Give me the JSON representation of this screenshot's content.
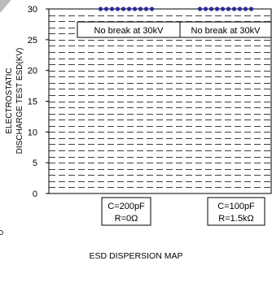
{
  "chart_data": {
    "type": "scatter",
    "title": "",
    "xlabel": "ESD DISPERSION MAP",
    "ylabel_lines": [
      "ELECTROSTATIC",
      "DISCHARGE TEST ESD(KV)"
    ],
    "ylim": [
      0,
      30
    ],
    "yticks": [
      "0",
      "5",
      "10",
      "15",
      "20",
      "25",
      "30"
    ],
    "grid": true,
    "categories": [
      {
        "line1": "C=200pF",
        "line2": "R=0Ω"
      },
      {
        "line1": "C=100pF",
        "line2": "R=1.5kΩ"
      }
    ],
    "series": [
      {
        "color": "#2b2b9a",
        "points_per_category": 10,
        "values": [
          30,
          30
        ]
      }
    ],
    "annotations": [
      "No break at 30kV",
      "No break at 30kV"
    ]
  }
}
